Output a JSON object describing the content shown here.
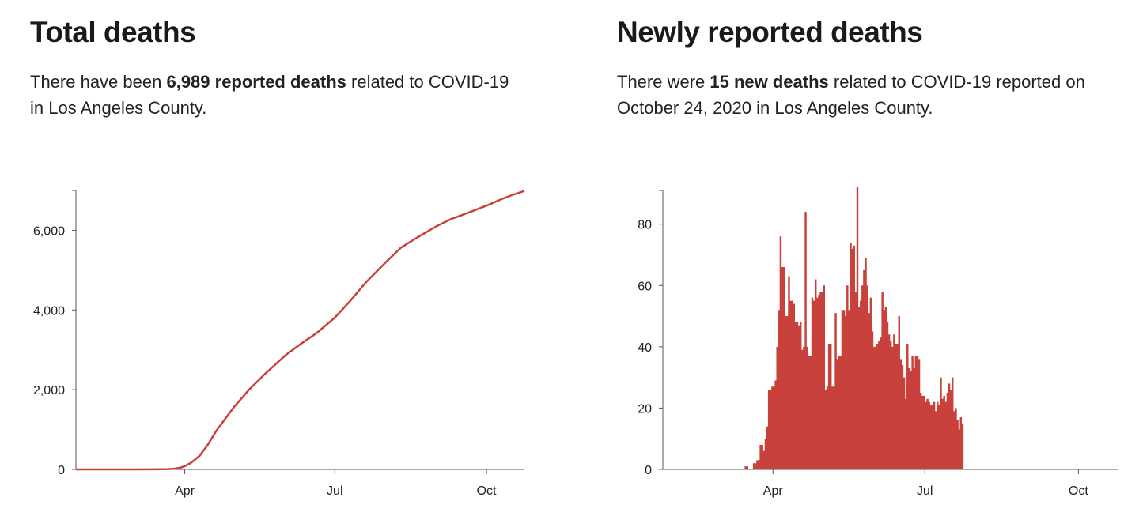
{
  "chart_data": [
    {
      "type": "line",
      "title": "Total deaths",
      "description": {
        "pre": "There have been ",
        "bold": "6,989 reported deaths",
        "post": " related to COVID-19 in Los Angeles County."
      },
      "color": "#c8413b",
      "ylim": [
        0,
        7000
      ],
      "y_ticks": [
        {
          "value": 0,
          "label": "0"
        },
        {
          "value": 2000,
          "label": "2,000"
        },
        {
          "value": 4000,
          "label": "4,000"
        },
        {
          "value": 6000,
          "label": "6,000"
        }
      ],
      "xlim": [
        "2020-01-26",
        "2020-10-24"
      ],
      "x_ticks": [
        {
          "date": "2020-04-01",
          "label": "Apr"
        },
        {
          "date": "2020-07-01",
          "label": "Jul"
        },
        {
          "date": "2020-10-01",
          "label": "Oct"
        }
      ],
      "grid": false,
      "series": [
        {
          "x": [
            "2020-01-26",
            "2020-02-15",
            "2020-03-01",
            "2020-03-15",
            "2020-03-22",
            "2020-03-26",
            "2020-03-29",
            "2020-04-01",
            "2020-04-05",
            "2020-04-10",
            "2020-04-15",
            "2020-04-20",
            "2020-04-25",
            "2020-05-01",
            "2020-05-10",
            "2020-05-20",
            "2020-06-01",
            "2020-06-10",
            "2020-06-20",
            "2020-07-01",
            "2020-07-10",
            "2020-07-20",
            "2020-08-01",
            "2020-08-10",
            "2020-08-20",
            "2020-09-01",
            "2020-09-10",
            "2020-09-20",
            "2020-10-01",
            "2020-10-10",
            "2020-10-17",
            "2020-10-24"
          ],
          "y": [
            0,
            0,
            0,
            2,
            8,
            20,
            40,
            80,
            170,
            340,
            620,
            960,
            1240,
            1570,
            2000,
            2410,
            2860,
            3140,
            3420,
            3810,
            4210,
            4700,
            5200,
            5560,
            5820,
            6110,
            6290,
            6440,
            6620,
            6780,
            6890,
            6989
          ]
        }
      ]
    },
    {
      "type": "bar",
      "title": "Newly reported deaths",
      "description": {
        "pre": "There were ",
        "bold": "15 new deaths",
        "post": " related to COVID-19 reported on October 24, 2020 in Los Angeles County."
      },
      "color": "#c8413b",
      "ylim": [
        0,
        91
      ],
      "y_ticks": [
        {
          "value": 0,
          "label": "0"
        },
        {
          "value": 20,
          "label": "20"
        },
        {
          "value": 40,
          "label": "40"
        },
        {
          "value": 60,
          "label": "60"
        },
        {
          "value": 80,
          "label": "80"
        }
      ],
      "xlim": [
        "2020-01-26",
        "2020-10-25"
      ],
      "x_ticks": [
        {
          "date": "2020-04-01",
          "label": "Apr"
        },
        {
          "date": "2020-07-01",
          "label": "Jul"
        },
        {
          "date": "2020-10-01",
          "label": "Oct"
        }
      ],
      "grid": false,
      "start_date": "2020-03-15",
      "values": [
        1,
        1,
        0,
        0,
        0,
        2,
        2,
        3,
        3,
        8,
        8,
        6,
        10,
        14,
        26,
        26,
        27,
        27,
        29,
        40,
        52,
        76,
        66,
        66,
        50,
        50,
        63,
        55,
        55,
        54,
        48,
        48,
        47,
        48,
        39,
        40,
        84,
        40,
        37,
        37,
        56,
        55,
        62,
        56,
        57,
        58,
        58,
        60,
        26,
        27,
        41,
        41,
        27,
        27,
        51,
        36,
        37,
        37,
        52,
        52,
        50,
        60,
        52,
        74,
        72,
        73,
        58,
        92,
        53,
        55,
        60,
        65,
        69,
        60,
        51,
        56,
        45,
        40,
        40,
        41,
        42,
        43,
        58,
        52,
        53,
        48,
        44,
        42,
        40,
        44,
        41,
        41,
        50,
        36,
        34,
        30,
        23,
        41,
        33,
        32,
        37,
        33,
        37,
        37,
        36,
        25,
        24,
        24,
        22,
        23,
        22,
        21,
        21,
        22,
        19,
        22,
        21,
        30,
        23,
        24,
        22,
        25,
        28,
        26,
        30,
        19,
        20,
        16,
        13,
        17,
        15
      ]
    }
  ]
}
